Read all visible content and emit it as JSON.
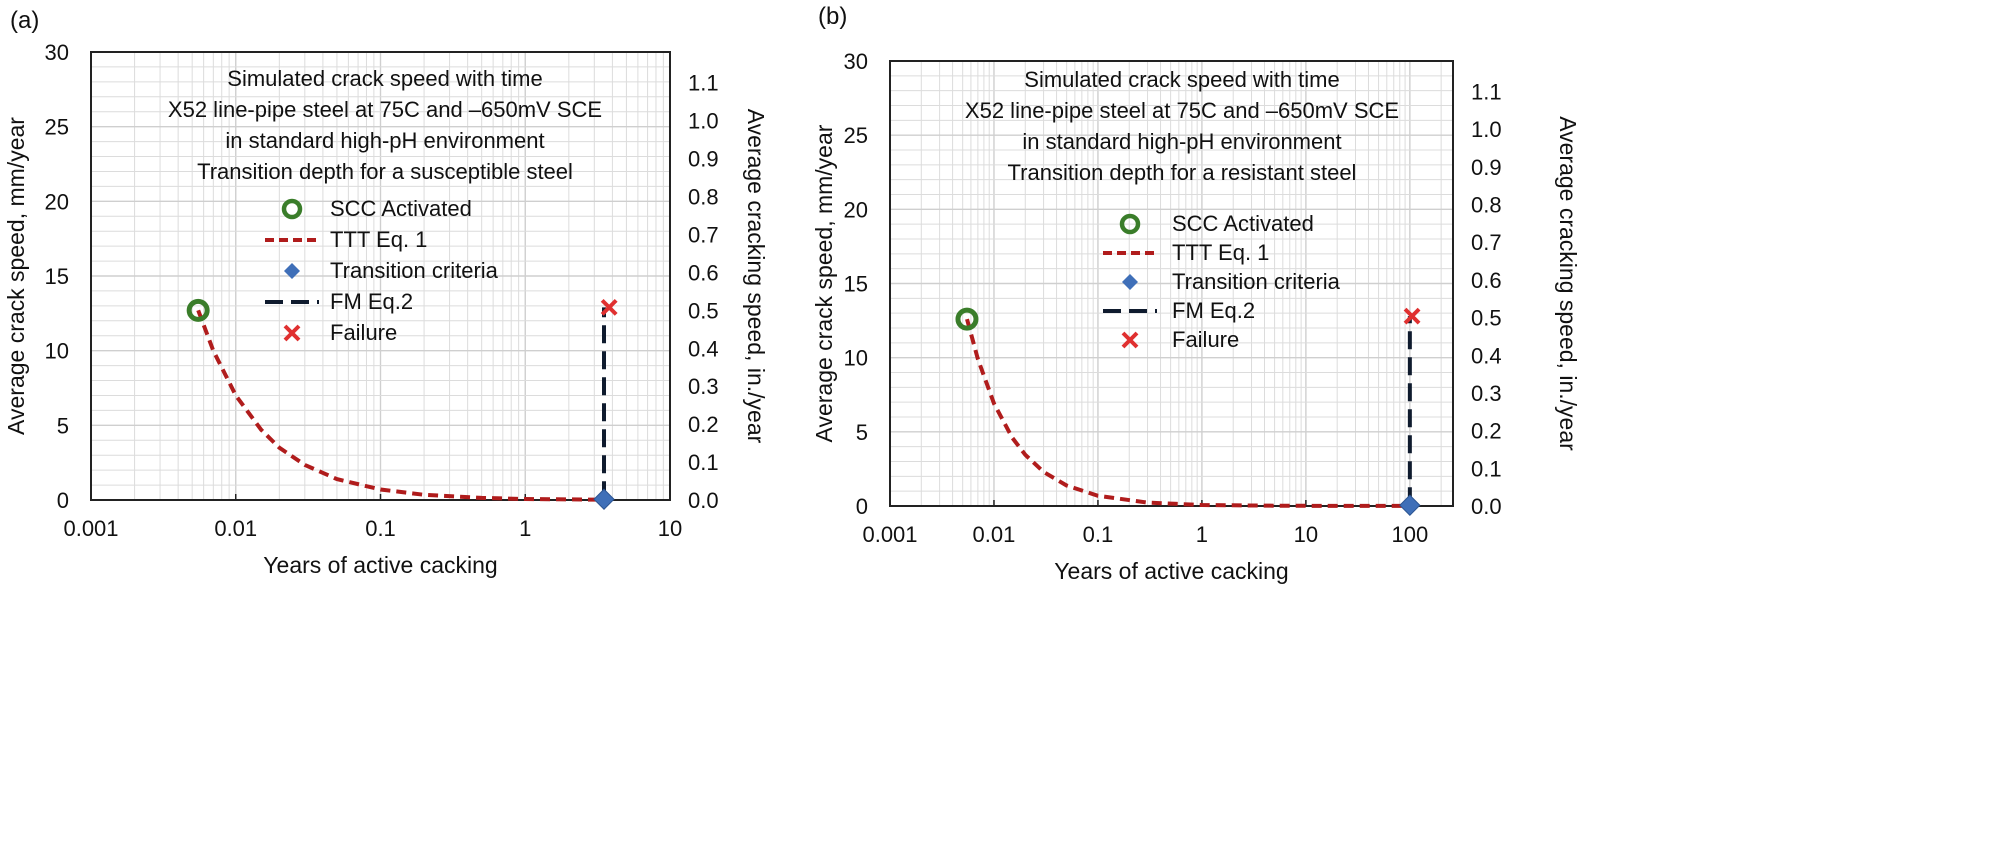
{
  "chart_data": [
    {
      "panel_label": "(a)",
      "type": "line",
      "x_scale": "log",
      "xlim": [
        0.001,
        10
      ],
      "x_ticks": [
        {
          "value": 0.001,
          "label": "0.001"
        },
        {
          "value": 0.01,
          "label": "0.01"
        },
        {
          "value": 0.1,
          "label": "0.1"
        },
        {
          "value": 1,
          "label": "1"
        },
        {
          "value": 10,
          "label": "10"
        }
      ],
      "ylim": [
        0,
        30
      ],
      "y_ticks": [
        "0",
        "5",
        "10",
        "15",
        "20",
        "25",
        "30"
      ],
      "y2lim": [
        0,
        1.181
      ],
      "y2_ticks": [
        "0.0",
        "0.1",
        "0.2",
        "0.3",
        "0.4",
        "0.5",
        "0.6",
        "0.7",
        "0.8",
        "0.9",
        "1.0",
        "1.1"
      ],
      "xlabel": "Years of active cacking",
      "ylabel": "Average crack speed, mm/year",
      "y2label": "Average cracking speed, in./year",
      "title_lines": [
        "Simulated crack speed with time",
        "X52 line-pipe steel at 75C and –650mV SCE",
        "in standard high-pH environment",
        "Transition depth for a susceptible steel"
      ],
      "legend": [
        {
          "label": "SCC Activated",
          "marker": "circle",
          "color": "#3a7d2a"
        },
        {
          "label": "TTT Eq. 1",
          "marker": "dash-line",
          "color": "#b01c1c"
        },
        {
          "label": "Transition criteria",
          "marker": "diamond",
          "color": "#3f6fb8"
        },
        {
          "label": "FM Eq.2",
          "marker": "long-dash-line",
          "color": "#0f1b2e"
        },
        {
          "label": "Failure",
          "marker": "x",
          "color": "#e03030"
        }
      ],
      "series": [
        {
          "name": "SCC Activated",
          "points": [
            {
              "x": 0.0055,
              "y": 12.7
            }
          ]
        },
        {
          "name": "TTT Eq. 1",
          "points": [
            {
              "x": 0.0055,
              "y": 12.7
            },
            {
              "x": 0.007,
              "y": 10.0
            },
            {
              "x": 0.01,
              "y": 7.0
            },
            {
              "x": 0.015,
              "y": 4.7
            },
            {
              "x": 0.02,
              "y": 3.5
            },
            {
              "x": 0.03,
              "y": 2.35
            },
            {
              "x": 0.05,
              "y": 1.4
            },
            {
              "x": 0.1,
              "y": 0.7
            },
            {
              "x": 0.2,
              "y": 0.35
            },
            {
              "x": 0.5,
              "y": 0.14
            },
            {
              "x": 1,
              "y": 0.07
            },
            {
              "x": 2,
              "y": 0.04
            },
            {
              "x": 3.5,
              "y": 0.02
            }
          ]
        },
        {
          "name": "Transition criteria",
          "points": [
            {
              "x": 3.5,
              "y": 0.05
            }
          ]
        },
        {
          "name": "FM Eq.2",
          "points": [
            {
              "x": 3.5,
              "y": 0.05
            },
            {
              "x": 3.5,
              "y": 12.9
            }
          ]
        },
        {
          "name": "Failure",
          "points": [
            {
              "x": 3.8,
              "y": 12.9
            }
          ]
        }
      ]
    },
    {
      "panel_label": "(b)",
      "type": "line",
      "x_scale": "log",
      "xlim": [
        0.001,
        260
      ],
      "x_ticks": [
        {
          "value": 0.001,
          "label": "0.001"
        },
        {
          "value": 0.01,
          "label": "0.01"
        },
        {
          "value": 0.1,
          "label": "0.1"
        },
        {
          "value": 1,
          "label": "1"
        },
        {
          "value": 10,
          "label": "10"
        },
        {
          "value": 100,
          "label": "100"
        }
      ],
      "ylim": [
        0,
        30
      ],
      "y_ticks": [
        "0",
        "5",
        "10",
        "15",
        "20",
        "25",
        "30"
      ],
      "y2lim": [
        0,
        1.181
      ],
      "y2_ticks": [
        "0.0",
        "0.1",
        "0.2",
        "0.3",
        "0.4",
        "0.5",
        "0.6",
        "0.7",
        "0.8",
        "0.9",
        "1.0",
        "1.1"
      ],
      "xlabel": "Years of active cacking",
      "ylabel": "Average crack speed, mm/year",
      "y2label": "Average cracking speed, in./year",
      "title_lines": [
        "Simulated crack speed with time",
        "X52 line-pipe steel at 75C and –650mV SCE",
        "in standard high-pH environment",
        "Transition depth for a resistant steel"
      ],
      "legend": [
        {
          "label": "SCC Activated",
          "marker": "circle",
          "color": "#3a7d2a"
        },
        {
          "label": "TTT Eq. 1",
          "marker": "dash-line",
          "color": "#b01c1c"
        },
        {
          "label": "Transition criteria",
          "marker": "diamond",
          "color": "#3f6fb8"
        },
        {
          "label": "FM Eq.2",
          "marker": "long-dash-line",
          "color": "#0f1b2e"
        },
        {
          "label": "Failure",
          "marker": "x",
          "color": "#e03030"
        }
      ],
      "series": [
        {
          "name": "SCC Activated",
          "points": [
            {
              "x": 0.0055,
              "y": 12.6
            }
          ]
        },
        {
          "name": "TTT Eq. 1",
          "points": [
            {
              "x": 0.0055,
              "y": 12.6
            },
            {
              "x": 0.007,
              "y": 9.9
            },
            {
              "x": 0.01,
              "y": 6.9
            },
            {
              "x": 0.015,
              "y": 4.6
            },
            {
              "x": 0.02,
              "y": 3.45
            },
            {
              "x": 0.03,
              "y": 2.3
            },
            {
              "x": 0.05,
              "y": 1.38
            },
            {
              "x": 0.1,
              "y": 0.69
            },
            {
              "x": 0.3,
              "y": 0.23
            },
            {
              "x": 1,
              "y": 0.07
            },
            {
              "x": 5,
              "y": 0.02
            },
            {
              "x": 20,
              "y": 0.01
            },
            {
              "x": 100,
              "y": 0.005
            }
          ]
        },
        {
          "name": "Transition criteria",
          "points": [
            {
              "x": 100,
              "y": 0.05
            }
          ]
        },
        {
          "name": "FM Eq.2",
          "points": [
            {
              "x": 100,
              "y": 0.05
            },
            {
              "x": 100,
              "y": 12.8
            }
          ]
        },
        {
          "name": "Failure",
          "points": [
            {
              "x": 105,
              "y": 12.8
            }
          ]
        }
      ]
    }
  ]
}
